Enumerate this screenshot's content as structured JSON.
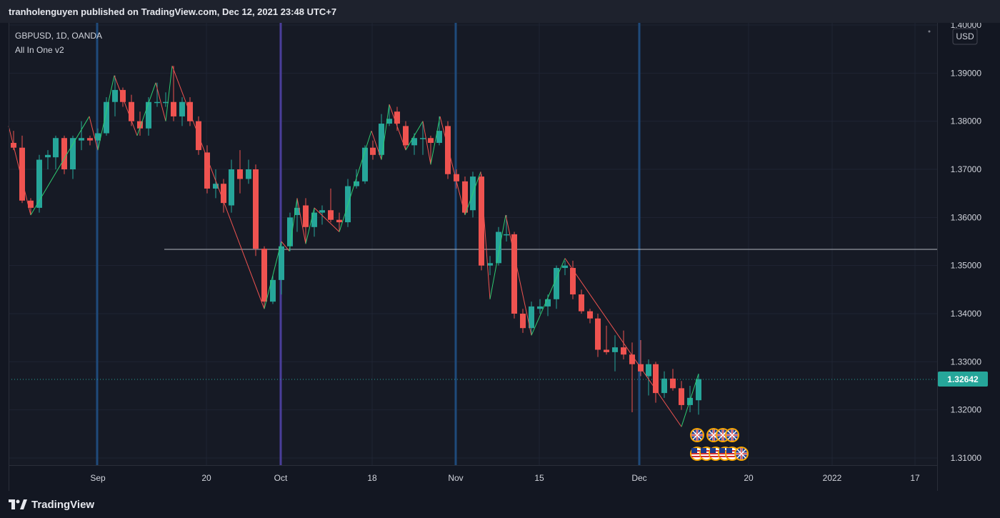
{
  "header": {
    "publisher_line": "tranholenguyen published on TradingView.com, Dec 12, 2021 23:48 UTC+7"
  },
  "legend": {
    "symbol_line": "GBPUSD, 1D, OANDA",
    "indicator_name": "All In One v2"
  },
  "price_axis": {
    "currency": "USD",
    "labels": [
      "1.40000",
      "1.39000",
      "1.38000",
      "1.37000",
      "1.36000",
      "1.35000",
      "1.34000",
      "1.33000",
      "1.32000",
      "1.31000"
    ],
    "current_price": "1.32642"
  },
  "time_axis": {
    "labels": [
      "Sep",
      "20",
      "Oct",
      "18",
      "Nov",
      "15",
      "Dec",
      "20",
      "2022",
      "17"
    ]
  },
  "footer": {
    "brand": "TradingView"
  },
  "colors": {
    "background": "#131722",
    "up": "#26a69a",
    "down": "#ef5350",
    "session_line": "#2962ff",
    "grid": "#1f2433",
    "current_price_badge": "#26a69a"
  },
  "chart_data": {
    "type": "candlestick",
    "symbol": "GBPUSD",
    "interval": "1D",
    "y_range": [
      1.3075,
      1.4
    ]
  }
}
